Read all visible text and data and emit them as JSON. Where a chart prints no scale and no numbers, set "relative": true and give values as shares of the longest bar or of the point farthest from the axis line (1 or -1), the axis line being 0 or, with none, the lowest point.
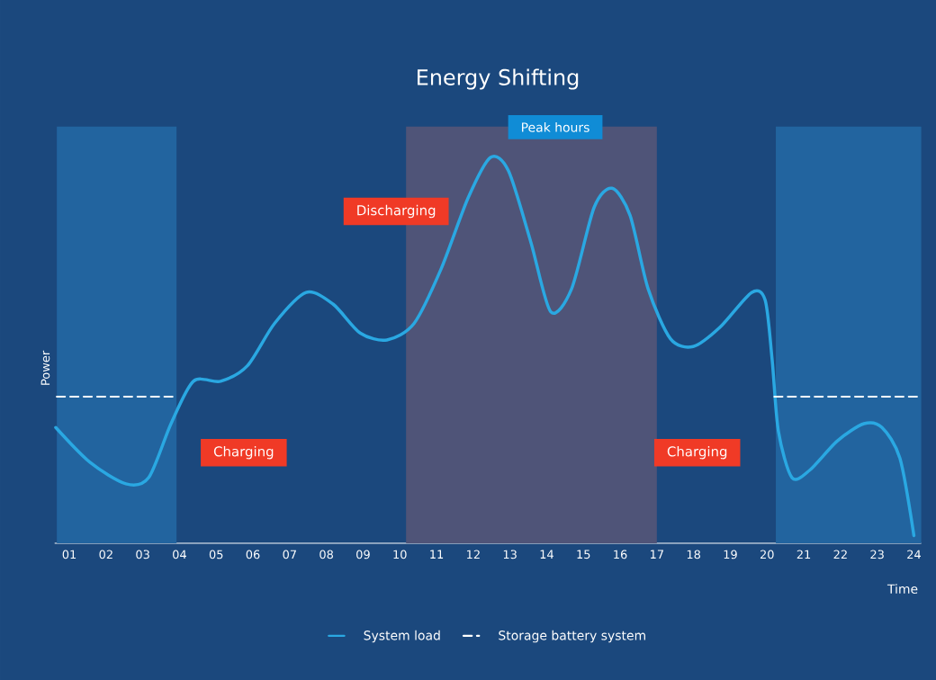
{
  "chart_data": {
    "type": "line",
    "title": "Energy Shifting",
    "xlabel": "Time",
    "ylabel": "Power",
    "relative": true,
    "legend": "bottom",
    "xlim": [
      0.6,
      24.2
    ],
    "xticks": [
      {
        "value": 1,
        "label": "01"
      },
      {
        "value": 2,
        "label": "02"
      },
      {
        "value": 3,
        "label": "03"
      },
      {
        "value": 4,
        "label": "04"
      },
      {
        "value": 5,
        "label": "05"
      },
      {
        "value": 6,
        "label": "06"
      },
      {
        "value": 7,
        "label": "07"
      },
      {
        "value": 8,
        "label": "08"
      },
      {
        "value": 9,
        "label": "09"
      },
      {
        "value": 10,
        "label": "10"
      },
      {
        "value": 11,
        "label": "11"
      },
      {
        "value": 12,
        "label": "12"
      },
      {
        "value": 13,
        "label": "13"
      },
      {
        "value": 14,
        "label": "14"
      },
      {
        "value": 15,
        "label": "15"
      },
      {
        "value": 16,
        "label": "16"
      },
      {
        "value": 17,
        "label": "17"
      },
      {
        "value": 18,
        "label": "18"
      },
      {
        "value": 19,
        "label": "19"
      },
      {
        "value": 20,
        "label": "20"
      },
      {
        "value": 21,
        "label": "21"
      },
      {
        "value": 22,
        "label": "22"
      },
      {
        "value": 23,
        "label": "23"
      },
      {
        "value": 24,
        "label": "24"
      }
    ],
    "series": [
      {
        "name": "System load",
        "color": "#2aa8e2",
        "line_style": "solid",
        "x": [
          0.63,
          1.56,
          2.54,
          3.16,
          3.77,
          4.38,
          5.12,
          5.85,
          6.59,
          7.45,
          8.18,
          8.92,
          9.65,
          10.39,
          11.12,
          11.86,
          12.47,
          12.96,
          13.57,
          14.11,
          14.68,
          15.29,
          15.78,
          16.27,
          16.76,
          17.37,
          17.99,
          18.72,
          19.58,
          19.95,
          20.14,
          20.31,
          20.68,
          21.17,
          21.91,
          22.64,
          23.13,
          23.62,
          24.0
        ],
        "values": [
          0.3,
          0.21,
          0.154,
          0.17,
          0.31,
          0.42,
          0.42,
          0.46,
          0.57,
          0.65,
          0.62,
          0.545,
          0.527,
          0.57,
          0.71,
          0.895,
          1.0,
          0.965,
          0.78,
          0.6,
          0.66,
          0.87,
          0.92,
          0.85,
          0.66,
          0.53,
          0.51,
          0.56,
          0.65,
          0.63,
          0.475,
          0.29,
          0.17,
          0.19,
          0.265,
          0.31,
          0.3,
          0.22,
          0.02
        ]
      },
      {
        "name": "Storage battery system",
        "color": "#ffffff",
        "line_style": "dashed",
        "x": [
          0.66,
          3.94,
          4.0,
          20.2,
          24.2
        ],
        "values": [
          0.38,
          0.38,
          null,
          0.38,
          0.38
        ]
      }
    ],
    "bands": [
      {
        "axis": "x",
        "from": 0.66,
        "to": 3.92,
        "color": "#22649f"
      },
      {
        "axis": "x",
        "from": 10.17,
        "to": 17.0,
        "color": "#4f5478",
        "label": "Peak hours"
      },
      {
        "axis": "x",
        "from": 20.24,
        "to": 24.2,
        "color": "#22649f"
      }
    ],
    "annotations": [
      "Discharging",
      "Charging",
      "Charging"
    ]
  }
}
